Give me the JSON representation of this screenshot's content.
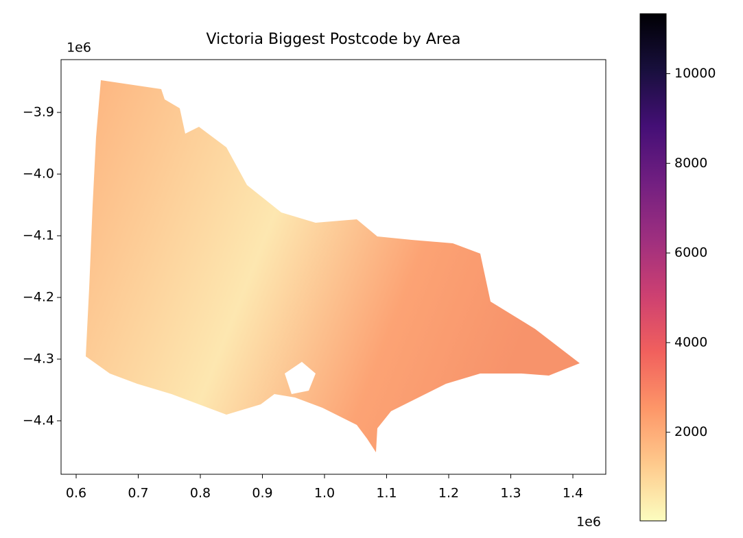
{
  "chart_data": {
    "type": "choropleth",
    "title": "Victoria Biggest Postcode by Area",
    "x_offset_label": "1e6",
    "y_offset_label": "1e6",
    "xlim": [
      0.5757,
      1.453
    ],
    "xticks": [
      0.6,
      0.7,
      0.8,
      0.9,
      {
        "value": 1.0,
        "label": "1.0"
      },
      1.1,
      1.2,
      1.3,
      1.4
    ],
    "ylim": [
      -4.4867,
      -3.8144
    ],
    "yticks": [
      {
        "value": -3.9,
        "label": "−3.9"
      },
      {
        "value": -4.0,
        "label": "−4.0"
      },
      {
        "value": -4.1,
        "label": "−4.1"
      },
      {
        "value": -4.2,
        "label": "−4.2"
      },
      {
        "value": -4.3,
        "label": "−4.3"
      },
      {
        "value": -4.4,
        "label": "−4.4"
      }
    ],
    "colorbar": {
      "clim": [
        23,
        11338
      ],
      "ticks": [
        2000,
        4000,
        6000,
        8000,
        10000
      ],
      "colors": [
        "#fcfdbf",
        "#feca8d",
        "#fd9668",
        "#f1605d",
        "#cd4071",
        "#9e2f7f",
        "#721f81",
        "#440f76",
        "#180f3d",
        "#000004"
      ]
    }
  }
}
